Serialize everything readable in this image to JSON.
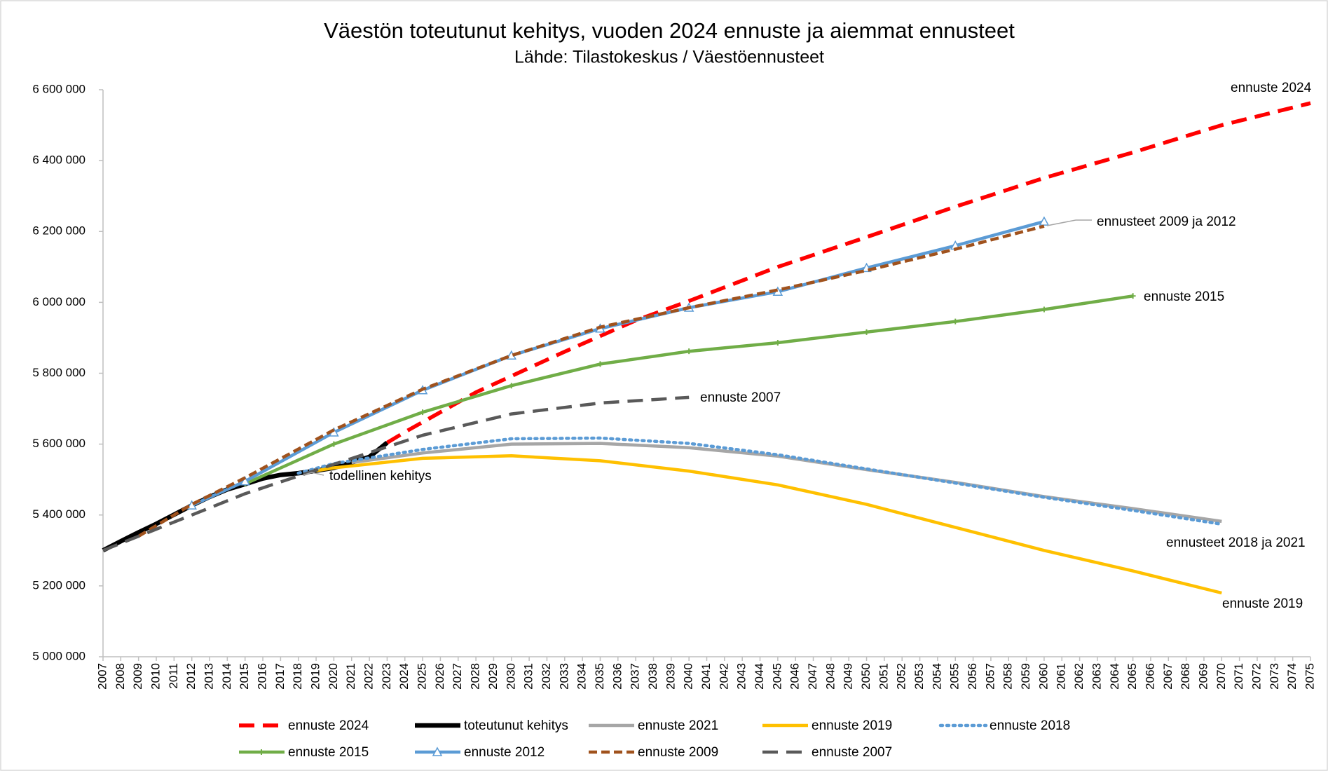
{
  "chart_data": {
    "type": "line",
    "title": "Väestön toteutunut kehitys, vuoden 2024 ennuste ja aiemmat ennusteet",
    "subtitle": "Lähde: Tilastokeskus / Väestöennusteet",
    "xlim": [
      2007,
      2075
    ],
    "xticks": [
      2007,
      2008,
      2009,
      2010,
      2011,
      2012,
      2013,
      2014,
      2015,
      2016,
      2017,
      2018,
      2019,
      2020,
      2021,
      2022,
      2023,
      2024,
      2025,
      2026,
      2027,
      2028,
      2029,
      2030,
      2031,
      2032,
      2033,
      2034,
      2035,
      2036,
      2037,
      2038,
      2039,
      2040,
      2041,
      2042,
      2043,
      2044,
      2045,
      2046,
      2047,
      2048,
      2049,
      2050,
      2051,
      2052,
      2053,
      2054,
      2055,
      2056,
      2057,
      2058,
      2059,
      2060,
      2061,
      2062,
      2063,
      2064,
      2065,
      2066,
      2067,
      2068,
      2069,
      2070,
      2071,
      2072,
      2073,
      2074,
      2075
    ],
    "ylim": [
      5000000,
      6600000
    ],
    "yticks": [
      {
        "value": 5000000,
        "label": "5 000 000"
      },
      {
        "value": 5200000,
        "label": "5 200 000"
      },
      {
        "value": 5400000,
        "label": "5 400 000"
      },
      {
        "value": 5600000,
        "label": "5 600 000"
      },
      {
        "value": 5800000,
        "label": "5 800 000"
      },
      {
        "value": 6000000,
        "label": "6 000 000"
      },
      {
        "value": 6200000,
        "label": "6 200 000"
      },
      {
        "value": 6400000,
        "label": "6 400 000"
      },
      {
        "value": 6600000,
        "label": "6 600 000"
      }
    ],
    "series": [
      {
        "name": "ennuste 2024",
        "color": "#ff0000",
        "style": "dashed",
        "x": [
          2023,
          2024,
          2028,
          2033,
          2037,
          2040,
          2045,
          2050,
          2055,
          2060,
          2065,
          2070,
          2075
        ],
        "values": [
          5604000,
          5634000,
          5746000,
          5861000,
          5949000,
          6004000,
          6100000,
          6184000,
          6270000,
          6351000,
          6423000,
          6500000,
          6562000
        ]
      },
      {
        "name": "toteutunut kehitys",
        "color": "#000000",
        "style": "solid",
        "x": [
          2007,
          2008,
          2009,
          2010,
          2011,
          2012,
          2013,
          2014,
          2015,
          2016,
          2017,
          2018,
          2019,
          2020,
          2021,
          2022,
          2023
        ],
        "values": [
          5300000,
          5326000,
          5351000,
          5375000,
          5401000,
          5427000,
          5451000,
          5472000,
          5487000,
          5503000,
          5513000,
          5518000,
          5525000,
          5533000,
          5548000,
          5564000,
          5604000
        ]
      },
      {
        "name": "ennuste 2021",
        "color": "#a6a6a6",
        "style": "solid",
        "x": [
          2021,
          2025,
          2030,
          2035,
          2040,
          2045,
          2050,
          2055,
          2060,
          2065,
          2070
        ],
        "values": [
          5548000,
          5575000,
          5600000,
          5602000,
          5590000,
          5566000,
          5528000,
          5492000,
          5452000,
          5418000,
          5382000
        ]
      },
      {
        "name": "ennuste 2019",
        "color": "#ffc000",
        "style": "solid",
        "x": [
          2019,
          2020,
          2025,
          2030,
          2035,
          2040,
          2045,
          2050,
          2055,
          2060,
          2065,
          2070
        ],
        "values": [
          5525000,
          5533000,
          5560000,
          5567000,
          5553000,
          5524000,
          5485000,
          5430000,
          5365000,
          5300000,
          5242000,
          5180000
        ]
      },
      {
        "name": "ennuste 2018",
        "color": "#5b9bd5",
        "style": "dotted",
        "x": [
          2018,
          2020,
          2025,
          2030,
          2035,
          2040,
          2045,
          2050,
          2055,
          2060,
          2065,
          2070
        ],
        "values": [
          5518000,
          5545000,
          5585000,
          5615000,
          5617000,
          5602000,
          5570000,
          5530000,
          5490000,
          5450000,
          5413000,
          5374000
        ]
      },
      {
        "name": "ennuste 2015",
        "color": "#70ad47",
        "style": "solid",
        "marker": "plus",
        "x": [
          2015,
          2020,
          2025,
          2030,
          2035,
          2040,
          2045,
          2050,
          2055,
          2060,
          2065
        ],
        "values": [
          5488000,
          5600000,
          5690000,
          5765000,
          5826000,
          5862000,
          5886000,
          5916000,
          5946000,
          5980000,
          6018000
        ]
      },
      {
        "name": "ennuste 2012",
        "color": "#5b9bd5",
        "style": "solid",
        "marker": "triangle",
        "x": [
          2012,
          2015,
          2020,
          2025,
          2030,
          2035,
          2040,
          2045,
          2050,
          2055,
          2060
        ],
        "values": [
          5427000,
          5495000,
          5633000,
          5752000,
          5850000,
          5926000,
          5985000,
          6030000,
          6097000,
          6160000,
          6228000
        ]
      },
      {
        "name": "ennuste 2009",
        "color": "#a0521d",
        "style": "dashed-short",
        "x": [
          2009,
          2012,
          2015,
          2020,
          2025,
          2030,
          2035,
          2040,
          2045,
          2050,
          2055,
          2060
        ],
        "values": [
          5340000,
          5430000,
          5505000,
          5640000,
          5755000,
          5850000,
          5930000,
          5985000,
          6035000,
          6090000,
          6150000,
          6215000
        ]
      },
      {
        "name": "ennuste 2007",
        "color": "#595959",
        "style": "dashed",
        "x": [
          2007,
          2010,
          2015,
          2020,
          2025,
          2030,
          2035,
          2040
        ],
        "values": [
          5300000,
          5360000,
          5460000,
          5543000,
          5625000,
          5685000,
          5716000,
          5732000
        ]
      }
    ],
    "annotations": [
      "ennuste 2024",
      "ennusteet 2009 ja 2012",
      "ennuste 2015",
      "ennuste 2007",
      "todellinen kehitys",
      "ennusteet 2018 ja 2021",
      "ennuste 2019"
    ]
  }
}
